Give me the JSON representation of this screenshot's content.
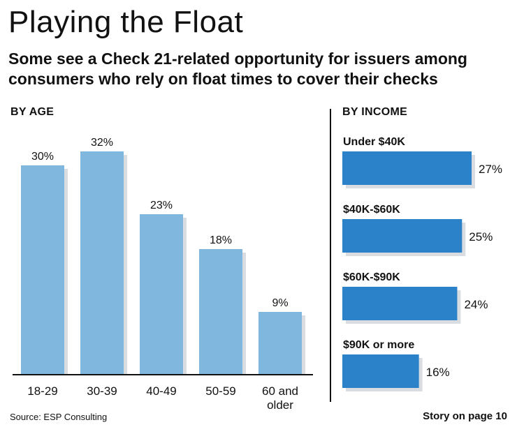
{
  "title": "Playing the Float",
  "subtitle": "Some see a Check 21-related opportunity for issuers among consumers who rely on float times to cover their checks",
  "source": "Source: ESP Consulting",
  "story_note": "Story on page 10",
  "colors": {
    "age_bar": "#7fb7de",
    "age_shadow": "#d9dde2",
    "income_bar": "#2c82c9",
    "income_shadow": "#d9dde2"
  },
  "chart_data": [
    {
      "type": "bar",
      "title": "BY AGE",
      "orientation": "vertical",
      "categories": [
        "18-29",
        "30-39",
        "40-49",
        "50-59",
        "60 and older"
      ],
      "category_lines": [
        [
          "18-29"
        ],
        [
          "30-39"
        ],
        [
          "40-49"
        ],
        [
          "50-59"
        ],
        [
          "60 and",
          "older"
        ]
      ],
      "values": [
        30,
        32,
        23,
        18,
        9
      ],
      "labels": [
        "30%",
        "32%",
        "23%",
        "18%",
        "9%"
      ],
      "unit": "%",
      "ylim": [
        0,
        32
      ]
    },
    {
      "type": "bar",
      "title": "BY INCOME",
      "orientation": "horizontal",
      "categories": [
        "Under $40K",
        "$40K-$60K",
        "$60K-$90K",
        "$90K or more"
      ],
      "values": [
        27,
        25,
        24,
        16
      ],
      "labels": [
        "27%",
        "25%",
        "24%",
        "16%"
      ],
      "unit": "%",
      "xlim": [
        0,
        27
      ]
    }
  ]
}
